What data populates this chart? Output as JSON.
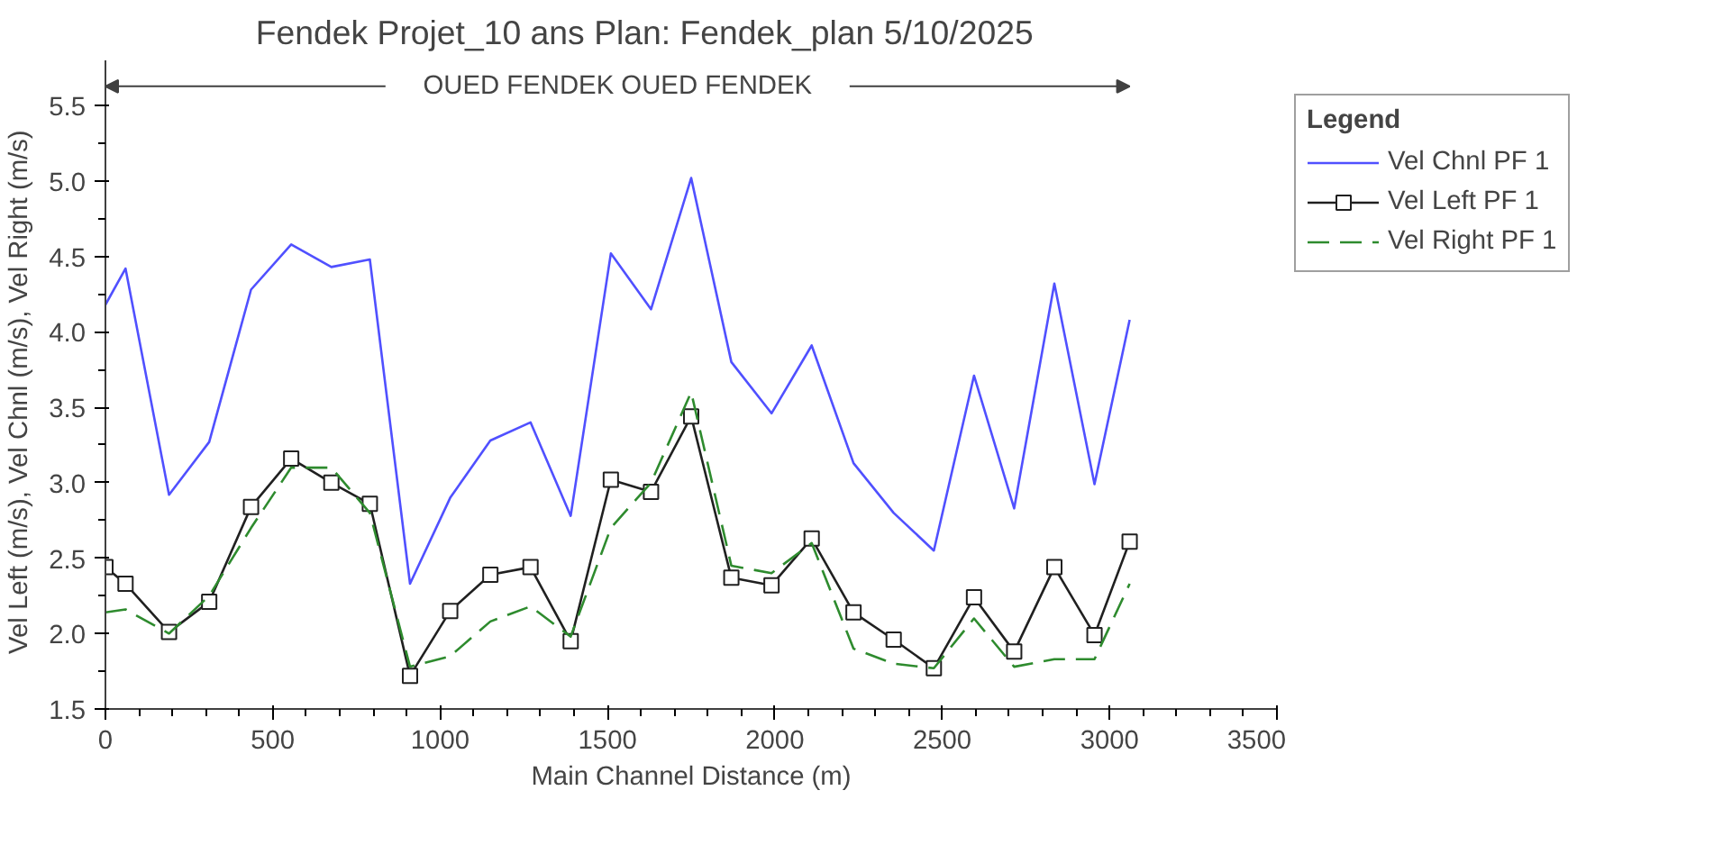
{
  "chart_data": {
    "type": "line",
    "title": "Fendek Projet_10 ans      Plan: Fendek_plan      5/10/2025",
    "xlabel": "Main Channel Distance (m)",
    "ylabel": "Vel Left (m/s),  Vel Chnl (m/s),  Vel Right (m/s)",
    "legend_title": "Legend",
    "legend": "right",
    "grid": false,
    "annotations": [
      "OUED FENDEK OUED FENDEK"
    ],
    "x": [
      0,
      60,
      190,
      310,
      435,
      555,
      675,
      790,
      910,
      1030,
      1150,
      1270,
      1390,
      1510,
      1630,
      1750,
      1870,
      1990,
      2110,
      2235,
      2355,
      2475,
      2595,
      2715,
      2835,
      2955,
      3060
    ],
    "xlim": [
      0,
      3500
    ],
    "ylim": [
      1.5,
      5.8
    ],
    "xticks": [
      0,
      500,
      1000,
      1500,
      2000,
      2500,
      3000,
      3500
    ],
    "yticks": [
      1.5,
      {
        "value": 2,
        "label": "2.0"
      },
      2.5,
      {
        "value": 3,
        "label": "3.0"
      },
      3.5,
      {
        "value": 4,
        "label": "4.0"
      },
      4.5,
      {
        "value": 5,
        "label": "5.0"
      },
      5.5
    ],
    "series": [
      {
        "name": "Vel Chnl PF 1",
        "color": "#5050ff",
        "marker": "none",
        "line_style": "solid",
        "values": [
          4.18,
          4.42,
          2.92,
          3.27,
          4.28,
          4.58,
          4.43,
          4.48,
          2.33,
          2.9,
          3.28,
          3.4,
          2.78,
          4.52,
          4.15,
          5.02,
          3.8,
          3.46,
          3.91,
          3.13,
          2.8,
          2.55,
          3.71,
          2.83,
          4.32,
          2.99,
          4.08
        ]
      },
      {
        "name": "Vel Left PF 1",
        "color": "#202020",
        "marker": "square",
        "line_style": "solid",
        "values": [
          2.44,
          2.33,
          2.01,
          2.21,
          2.84,
          3.16,
          3.0,
          2.86,
          1.72,
          2.15,
          2.39,
          2.44,
          1.95,
          3.02,
          2.94,
          3.44,
          2.37,
          2.32,
          2.63,
          2.14,
          1.96,
          1.77,
          2.24,
          1.88,
          2.44,
          1.99,
          2.61
        ]
      },
      {
        "name": "Vel Right PF 1",
        "color": "#2e8b2e",
        "marker": "none",
        "line_style": "dashed",
        "values": [
          2.14,
          2.16,
          2.0,
          2.25,
          2.7,
          3.1,
          3.1,
          2.8,
          1.78,
          1.85,
          2.08,
          2.18,
          1.98,
          2.7,
          3.0,
          3.6,
          2.45,
          2.4,
          2.6,
          1.9,
          1.8,
          1.77,
          2.1,
          1.78,
          1.83,
          1.83,
          2.33
        ]
      }
    ]
  }
}
